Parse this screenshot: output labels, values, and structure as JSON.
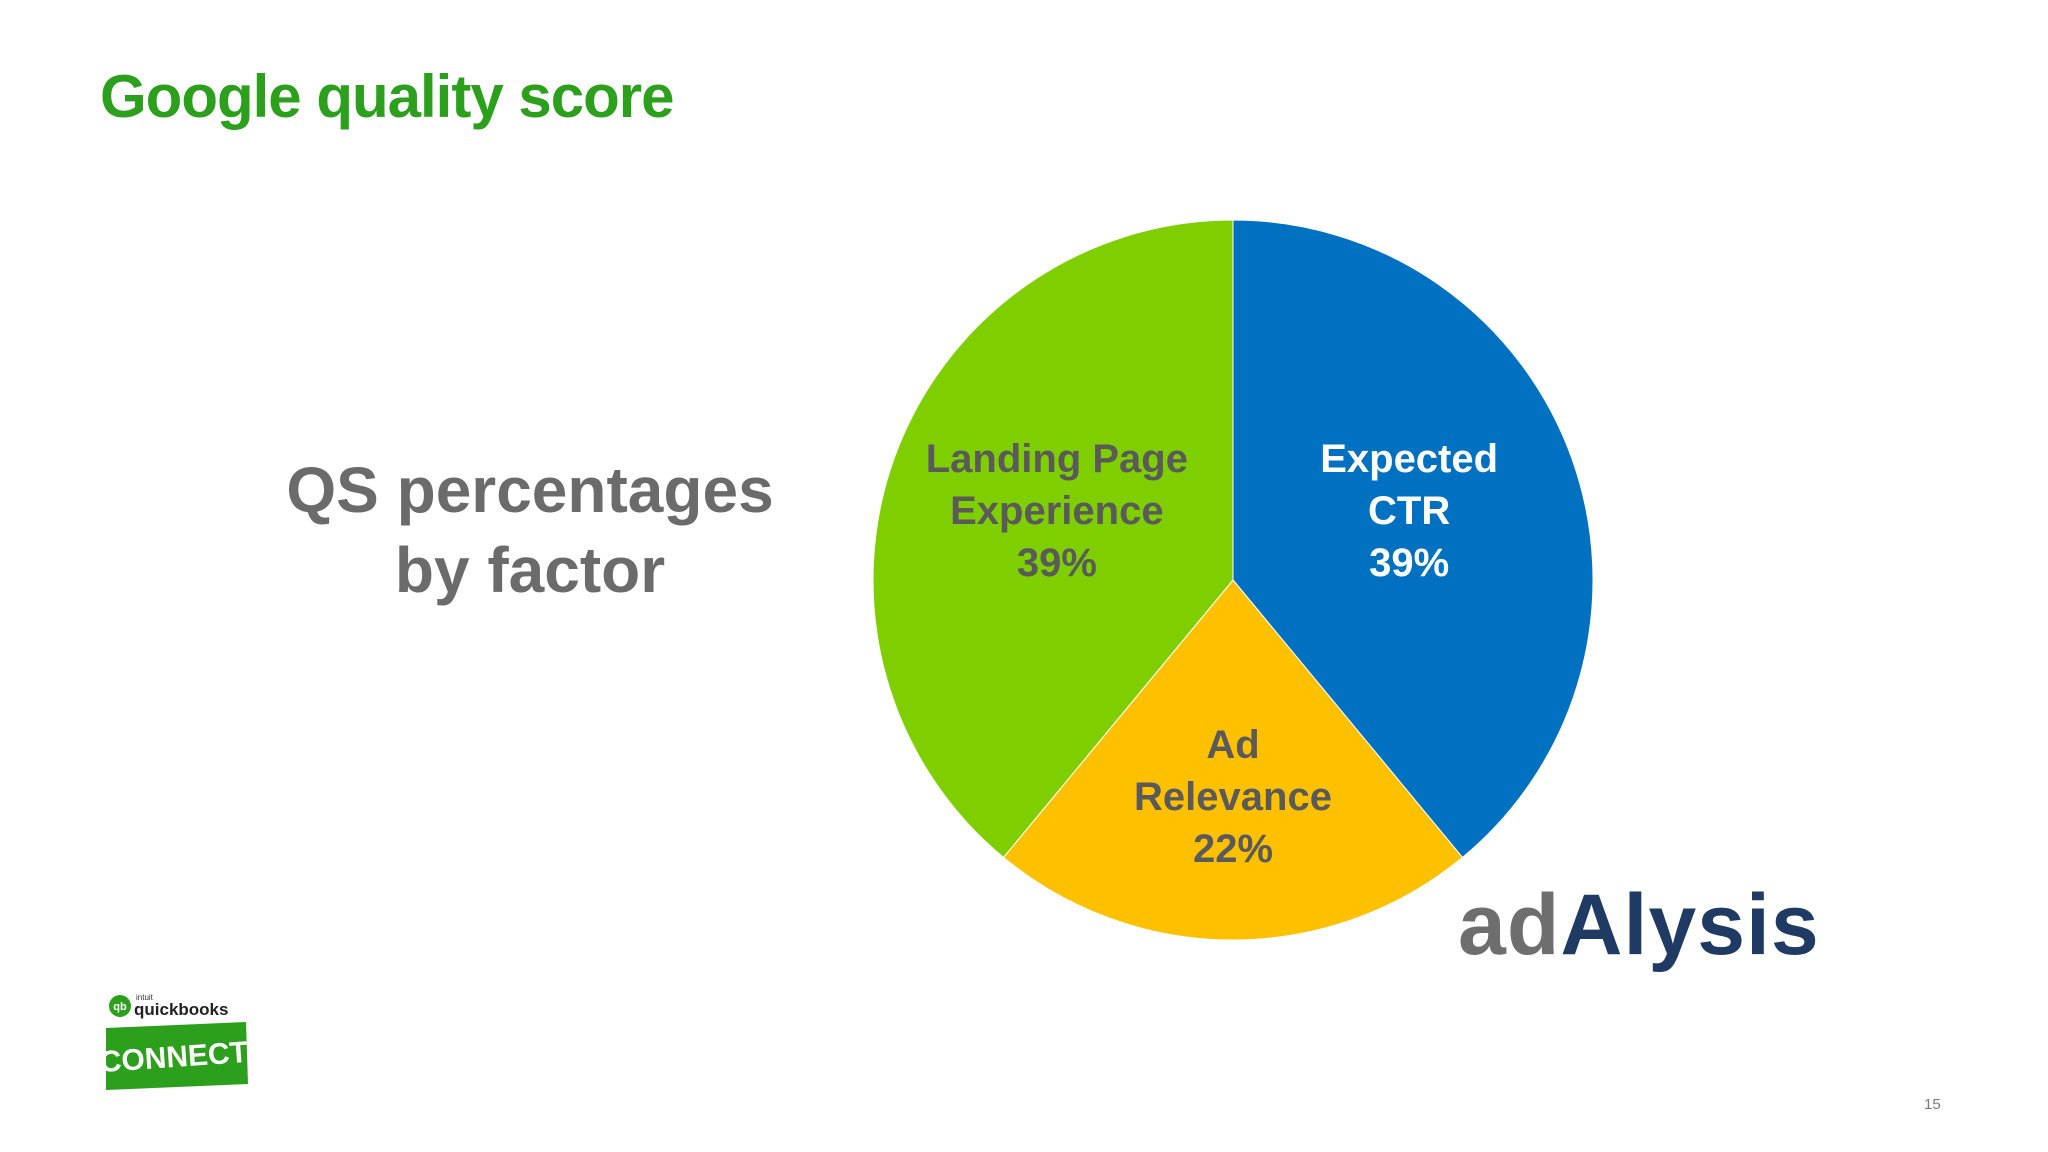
{
  "slide": {
    "title": "Google quality score",
    "subtitle_line1": "QS percentages",
    "subtitle_line2": "by factor",
    "page_number": "15"
  },
  "logos": {
    "adalysis_ad": "ad",
    "adalysis_rest": "Alysis",
    "quickbooks_intuit": "intuit",
    "quickbooks_name": "quickbooks",
    "quickbooks_connect": "CONNECT"
  },
  "chart_data": {
    "type": "pie",
    "slices": [
      {
        "label_lines": [
          "Expected",
          "CTR"
        ],
        "value": 39,
        "value_label": "39%",
        "color": "#0070c0",
        "text_color": "#ffffff"
      },
      {
        "label_lines": [
          "Ad",
          "Relevance"
        ],
        "value": 22,
        "value_label": "22%",
        "color": "#ffc000",
        "text_color": "#5a5a5a"
      },
      {
        "label_lines": [
          "Landing Page",
          "Experience"
        ],
        "value": 39,
        "value_label": "39%",
        "color": "#7fcf00",
        "text_color": "#5a5a5a"
      }
    ],
    "start": "12 o'clock",
    "direction": "clockwise"
  },
  "colors": {
    "title": "#2ca01c",
    "subtitle": "#6b6b6b",
    "qb_green": "#2ca01c"
  }
}
